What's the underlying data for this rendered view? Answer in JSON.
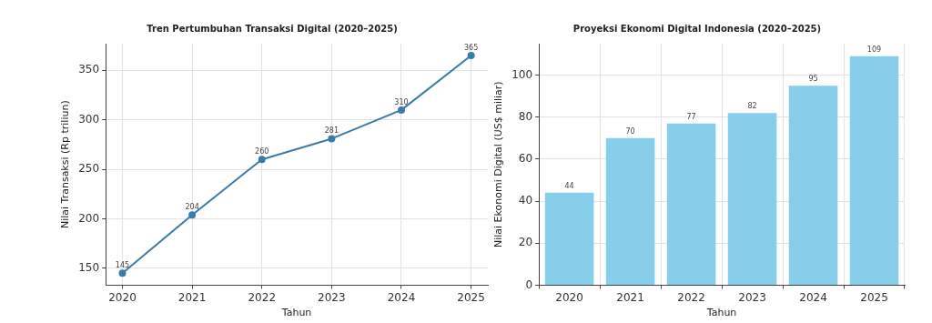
{
  "chart_data": [
    {
      "type": "line",
      "title": "Tren Pertumbuhan Transaksi Digital (2020–2025)",
      "xlabel": "Tahun",
      "ylabel": "Nilai Transaksi (Rp triliun)",
      "x": [
        2020,
        2021,
        2022,
        2023,
        2024,
        2025
      ],
      "values": [
        145,
        204,
        260,
        281,
        310,
        365
      ],
      "color": "#3a7ca5",
      "xlim": [
        2019.76,
        2025.24
      ],
      "xticks": [
        2020,
        2021,
        2022,
        2023,
        2024,
        2025
      ],
      "ylim": [
        133,
        377
      ],
      "yticks": [
        150,
        200,
        250,
        300,
        350
      ],
      "grid": true,
      "marker": "circle",
      "line_style": "solid",
      "data_labels": true
    },
    {
      "type": "bar",
      "title": "Proyeksi Ekonomi Digital Indonesia (2020–2025)",
      "xlabel": "Tahun",
      "ylabel": "Nilai Ekonomi Digital (US$ miliar)",
      "categories": [
        "2020",
        "2021",
        "2022",
        "2023",
        "2024",
        "2025"
      ],
      "values": [
        44,
        70,
        77,
        82,
        95,
        109
      ],
      "color": "#87ceeb",
      "ylim": [
        0,
        115
      ],
      "yticks": [
        0,
        20,
        40,
        60,
        80,
        100
      ],
      "grid": true,
      "data_labels": true
    }
  ]
}
